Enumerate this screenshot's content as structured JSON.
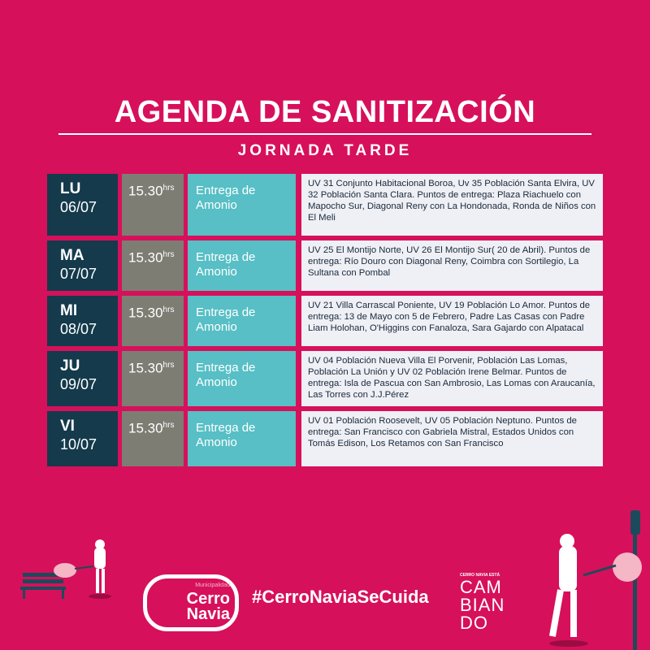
{
  "header": {
    "title": "AGENDA DE SANITIZACIÓN",
    "subtitle": "JORNADA TARDE"
  },
  "schedule": [
    {
      "day": "LU",
      "date": "06/07",
      "time": "15.30",
      "time_unit": "hrs",
      "activity": "Entrega de Amonio",
      "description": "UV 31 Conjunto Habitacional Boroa, Uv 35 Población Santa Elvira, UV 32 Población Santa Clara. Puntos de entrega: Plaza Riachuelo con Mapocho Sur, Diagonal Reny con La Hondonada, Ronda de Niños con El Meli"
    },
    {
      "day": "MA",
      "date": "07/07",
      "time": "15.30",
      "time_unit": "hrs",
      "activity": "Entrega de Amonio",
      "description": "UV 25 El Montijo Norte, UV 26 El Montijo Sur( 20 de Abril). Puntos de entrega: Río Douro con Diagonal Reny, Coimbra con Sortilegio, La Sultana con Pombal"
    },
    {
      "day": "MI",
      "date": "08/07",
      "time": "15.30",
      "time_unit": "hrs",
      "activity": "Entrega de Amonio",
      "description": "UV 21  Villa Carrascal Poniente, UV 19 Población Lo Amor. Puntos de entrega: 13 de Mayo con 5 de Febrero, Padre Las Casas con Padre Liam Holohan, O'Higgins con Fanaloza, Sara Gajardo con Alpatacal"
    },
    {
      "day": "JU",
      "date": "09/07",
      "time": "15.30",
      "time_unit": "hrs",
      "activity": "Entrega de Amonio",
      "description": "UV 04 Población Nueva Villa El Porvenir, Población Las Lomas, Población La Unión y UV 02 Población Irene Belmar. Puntos de entrega: Isla de Pascua con San Ambrosio, Las Lomas con Araucanía, Las Torres con J.J.Pérez"
    },
    {
      "day": "VI",
      "date": "10/07",
      "time": "15.30",
      "time_unit": "hrs",
      "activity": "Entrega de Amonio",
      "description": "UV 01 Población Roosevelt, UV 05 Población Neptuno. Puntos de entrega: San Francisco con Gabriela Mistral, Estados Unidos con Tomás Edison, Los Retamos con San Francisco"
    }
  ],
  "footer": {
    "logo": {
      "small": "Municipalidad",
      "line1": "Cerro",
      "line2": "Navia"
    },
    "hashtag": "#CerroNaviaSeCuida",
    "slogan": {
      "small": "CERRO NAVIA ESTÁ",
      "l1": "CAM",
      "l2": "BIAN",
      "l3": "DO"
    }
  },
  "colors": {
    "background": "#d7105b",
    "day": "#143a4c",
    "time": "#7d7d74",
    "activity": "#57bfc5",
    "description": "#eef0f6"
  }
}
